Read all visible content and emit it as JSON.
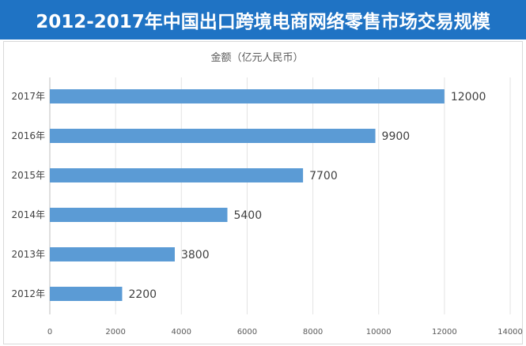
{
  "header": {
    "title": "2012-2017年中国出口跨境电商网络零售市场交易规模"
  },
  "chart_data": {
    "type": "bar",
    "orientation": "horizontal",
    "title": "2012-2017年中国出口跨境电商网络零售市场交易规模",
    "unit_label": "金额（亿元人民币）",
    "categories": [
      "2017年",
      "2016年",
      "2015年",
      "2014年",
      "2013年",
      "2012年"
    ],
    "values": [
      12000,
      9900,
      7700,
      5400,
      3800,
      2200
    ],
    "value_labels": [
      "12000",
      "9900",
      "7700",
      "5400",
      "3800",
      "2200"
    ],
    "xlim": [
      0,
      14000
    ],
    "x_ticks": [
      0,
      2000,
      4000,
      6000,
      8000,
      10000,
      12000,
      14000
    ],
    "x_tick_labels": [
      "0",
      "2000",
      "4000",
      "6000",
      "8000",
      "10000",
      "12000",
      "14000"
    ],
    "grid": true,
    "bar_color": "#5b9bd5"
  }
}
